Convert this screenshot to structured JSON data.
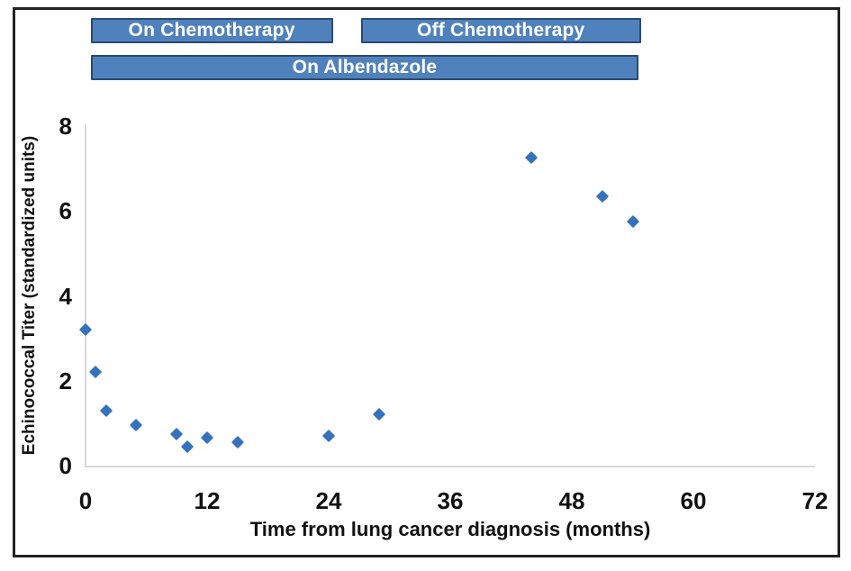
{
  "chart_data": {
    "type": "scatter",
    "title": "",
    "xlabel": "Time from lung cancer diagnosis (months)",
    "ylabel": "Echinococcal Titer (standardized units)",
    "xlim": [
      0,
      72
    ],
    "ylim": [
      0,
      8
    ],
    "x_ticks": [
      0,
      12,
      24,
      36,
      48,
      60,
      72
    ],
    "y_ticks": [
      0,
      2,
      4,
      6,
      8
    ],
    "grid": false,
    "legend": false,
    "marker": "diamond",
    "series": [
      {
        "name": "Echinococcal titer",
        "points": [
          [
            0,
            3.2
          ],
          [
            1,
            2.2
          ],
          [
            2,
            1.3
          ],
          [
            5,
            0.95
          ],
          [
            9,
            0.75
          ],
          [
            10,
            0.45
          ],
          [
            12,
            0.65
          ],
          [
            15,
            0.55
          ],
          [
            24,
            0.7
          ],
          [
            29,
            1.2
          ],
          [
            44,
            7.25
          ],
          [
            51,
            6.35
          ],
          [
            54,
            5.75
          ]
        ]
      }
    ],
    "annotations": [
      {
        "label": "On Chemotherapy",
        "row": 1,
        "x_start": 0.5,
        "x_end": 24.4
      },
      {
        "label": "Off Chemotherapy",
        "row": 1,
        "x_start": 27.2,
        "x_end": 54.8
      },
      {
        "label": "On Albendazole",
        "row": 2,
        "x_start": 0.5,
        "x_end": 54.6
      }
    ],
    "colors": {
      "banner_fill": "#4F81BD",
      "banner_border": "#2A4A73",
      "banner_text": "#FFFFFF",
      "marker": "#3571BC",
      "axis_line": "#D9D9D9",
      "text": "#111111",
      "frame_border": "#232323"
    }
  }
}
